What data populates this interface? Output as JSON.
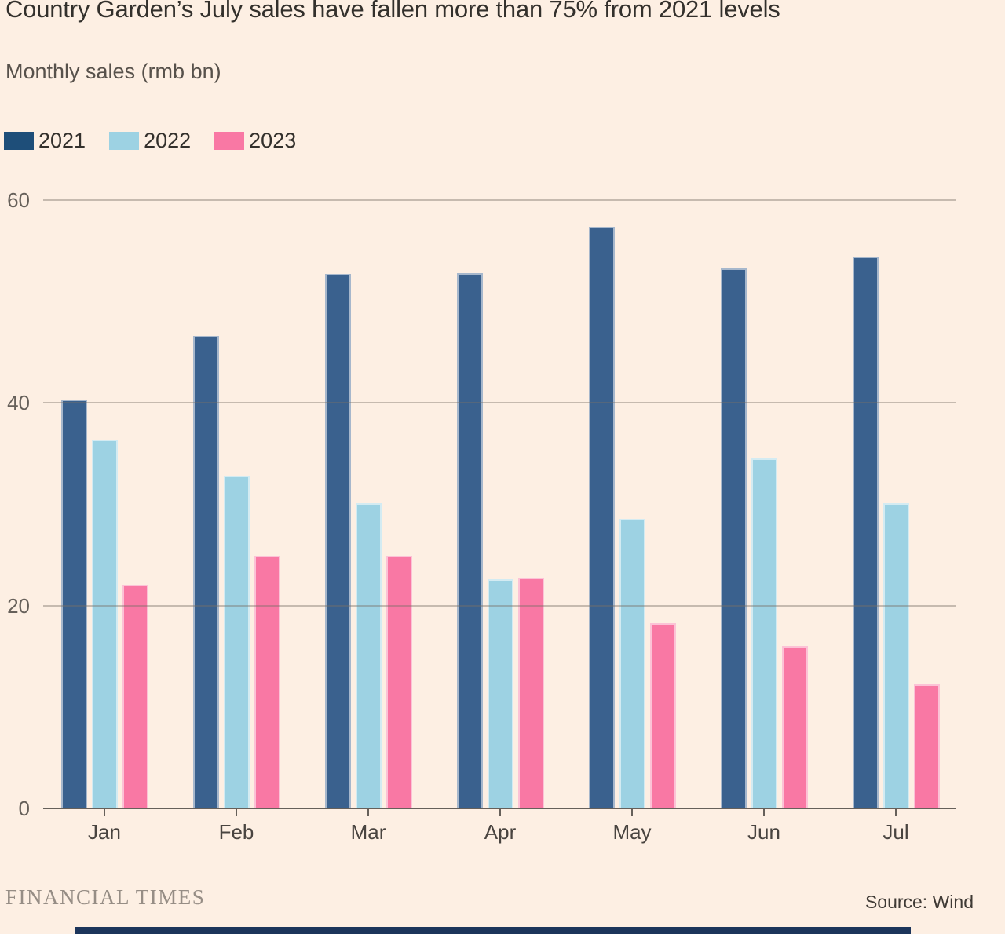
{
  "title": "Country Garden’s July sales have fallen more than 75% from 2021 levels",
  "subtitle": "Monthly sales (rmb bn)",
  "legend": [
    {
      "label": "2021",
      "color": "#1E4E79"
    },
    {
      "label": "2022",
      "color": "#9DD2E3"
    },
    {
      "label": "2023",
      "color": "#F978A4"
    }
  ],
  "chart_data": {
    "type": "bar",
    "categories": [
      "Jan",
      "Feb",
      "Mar",
      "Apr",
      "May",
      "Jun",
      "Jul"
    ],
    "series": [
      {
        "name": "2021",
        "color": "#3A618E",
        "values": [
          40.3,
          46.6,
          52.7,
          52.8,
          57.4,
          53.3,
          54.4
        ]
      },
      {
        "name": "2022",
        "color": "#9DD2E3",
        "values": [
          36.4,
          32.8,
          30.1,
          22.6,
          28.6,
          34.5,
          30.1
        ]
      },
      {
        "name": "2023",
        "color": "#F978A4",
        "values": [
          22.1,
          24.9,
          24.9,
          22.8,
          18.3,
          16.0,
          12.2
        ]
      }
    ],
    "title": "Country Garden’s July sales have fallen more than 75% from 2021 levels",
    "xlabel": "",
    "ylabel": "Monthly sales (rmb bn)",
    "ylim": [
      0,
      60
    ],
    "yticks": [
      60,
      40,
      20,
      0
    ],
    "grid": true,
    "legend_position": "top-left"
  },
  "footer": {
    "brand": "FINANCIAL TIMES",
    "source": "Source: Wind"
  }
}
